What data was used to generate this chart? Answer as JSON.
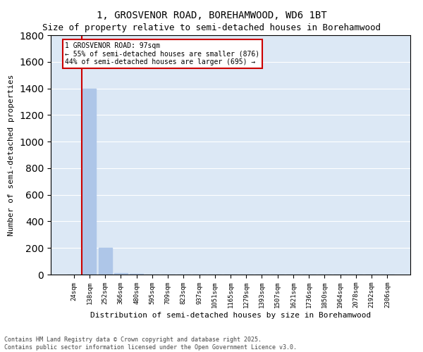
{
  "title": "1, GROSVENOR ROAD, BOREHAMWOOD, WD6 1BT",
  "subtitle": "Size of property relative to semi-detached houses in Borehamwood",
  "xlabel": "Distribution of semi-detached houses by size in Borehamwood",
  "ylabel": "Number of semi-detached properties",
  "categories": [
    "24sqm",
    "138sqm",
    "252sqm",
    "366sqm",
    "480sqm",
    "595sqm",
    "709sqm",
    "823sqm",
    "937sqm",
    "1051sqm",
    "1165sqm",
    "1279sqm",
    "1393sqm",
    "1507sqm",
    "1621sqm",
    "1736sqm",
    "1850sqm",
    "1964sqm",
    "2078sqm",
    "2192sqm",
    "2306sqm"
  ],
  "values": [
    0,
    1400,
    200,
    10,
    4,
    2,
    1,
    0,
    0,
    0,
    0,
    0,
    0,
    0,
    0,
    0,
    0,
    0,
    0,
    0,
    0
  ],
  "bar_color": "#aec6e8",
  "vline_color": "#cc0000",
  "vline_position": 0.5,
  "annotation_title": "1 GROSVENOR ROAD: 97sqm",
  "annotation_line1": "← 55% of semi-detached houses are smaller (876)",
  "annotation_line2": "44% of semi-detached houses are larger (695) →",
  "annotation_box_color": "#cc0000",
  "ylim": [
    0,
    1800
  ],
  "background_color": "#dce8f5",
  "footer": "Contains HM Land Registry data © Crown copyright and database right 2025.\nContains public sector information licensed under the Open Government Licence v3.0.",
  "title_fontsize": 10,
  "subtitle_fontsize": 9,
  "ylabel_fontsize": 8,
  "xlabel_fontsize": 8,
  "tick_fontsize": 6.5,
  "annotation_fontsize": 7,
  "footer_fontsize": 6
}
